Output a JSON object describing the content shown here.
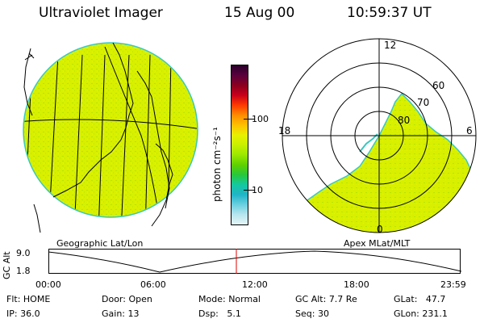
{
  "header": {
    "instrument": "Ultraviolet Imager",
    "date": "15 Aug 00",
    "time": "10:59:37 UT"
  },
  "colorbar": {
    "unit_label": "photon cm⁻²s⁻¹",
    "ticks": [
      "100",
      "10"
    ],
    "colors": [
      "#2a002a",
      "#5a003c",
      "#8a0020",
      "#c8001a",
      "#ff3a00",
      "#ff8c00",
      "#ffc000",
      "#e8f000",
      "#c8f000",
      "#9be800",
      "#5fd000",
      "#28c83c",
      "#14c8a0",
      "#20b4c8",
      "#6ad0e0",
      "#b8e6ee",
      "#e6f4f6"
    ]
  },
  "left_map": {
    "projection_label": "Geographic Lat/Lon",
    "fill_color": "#d8f000",
    "edge_color": "#38c8c0"
  },
  "polar_plot": {
    "projection_label": "Apex MLat/MLT",
    "mlt_labels": {
      "top": "12",
      "left": "18",
      "right": "6",
      "bottom": "0"
    },
    "lat_labels": [
      "60",
      "70",
      "80"
    ]
  },
  "altitude_plot": {
    "ylabel": "GC Alt",
    "yticks": [
      "9.0",
      "1.8"
    ],
    "xticks": [
      "00:00",
      "06:00",
      "12:00",
      "18:00",
      "23:59"
    ],
    "current_time_color": "#e00000"
  },
  "status": {
    "flt_label": "Flt:",
    "flt_value": "HOME",
    "ip_label": "IP:",
    "ip_value": "36.0",
    "door_label": "Door:",
    "door_value": "Open",
    "gain_label": "Gain:",
    "gain_value": "13",
    "mode_label": "Mode:",
    "mode_value": "Normal",
    "dsp_label": "Dsp:",
    "dsp_value": "5.1",
    "gcalt_label": "GC Alt:",
    "gcalt_value": "7.7 Re",
    "seq_label": "Seq:",
    "seq_value": "30",
    "glat_label": "GLat:",
    "glat_value": "47.7",
    "glon_label": "GLon:",
    "glon_value": "231.1"
  }
}
